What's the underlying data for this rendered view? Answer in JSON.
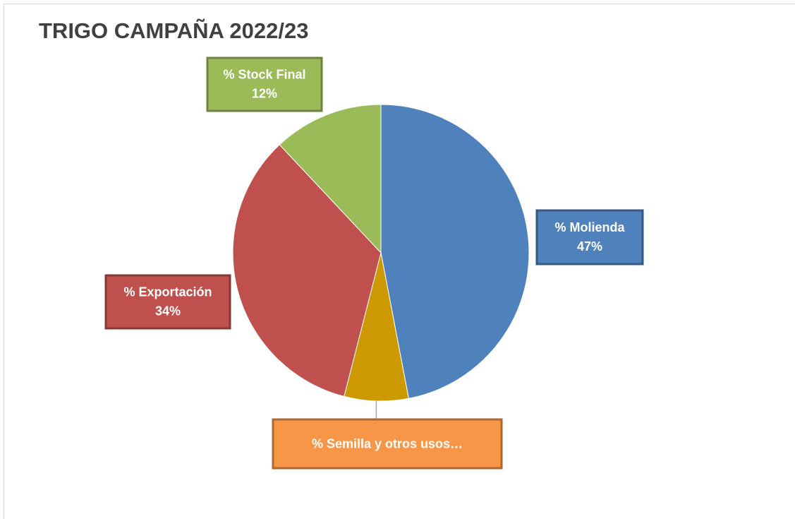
{
  "chart_data": {
    "type": "pie",
    "title": "TRIGO CAMPAÑA 2022/23",
    "categories": [
      "% Molienda",
      "% Semilla y otros usos…",
      "% Exportación",
      "% Stock Final"
    ],
    "values": [
      47,
      7,
      34,
      12
    ],
    "value_labels": [
      "47%",
      null,
      "34%",
      "12%"
    ],
    "colors": [
      "#4f81bd",
      "#cc9900",
      "#c0504d",
      "#9bbb59"
    ],
    "label_colors": [
      "#4f81bd",
      "#f79646",
      "#c0504d",
      "#9bbb59"
    ]
  }
}
